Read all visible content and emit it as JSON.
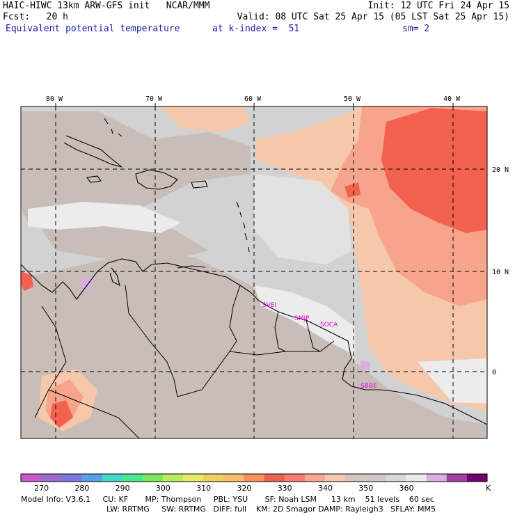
{
  "header": {
    "line1_left": "HAIC-HIWC 13km ARW-GFS init   NCAR/MMM",
    "line1_right": "Init: 12 UTC Fri 24 Apr 15",
    "line2_left": "Fcst:   20 h",
    "line2_right": "Valid: 08 UTC Sat 25 Apr 15 (05 LST Sat 25 Apr 15)",
    "line3_left": "Equivalent potential temperature",
    "line3_mid": "at k-index =  51",
    "line3_right": "sm= 2"
  },
  "map": {
    "lon_labels": [
      "80 W",
      "70 W",
      "60 W",
      "50 W",
      "40 W"
    ],
    "lat_labels": [
      "20 N",
      "10 N",
      "0"
    ],
    "city_labels": [
      "SVEI",
      "SMJP",
      "SOCA",
      "SBBE"
    ]
  },
  "colorbar": {
    "unit": "K",
    "labels": [
      "270",
      "280",
      "290",
      "300",
      "310",
      "320",
      "330",
      "340",
      "350",
      "360"
    ],
    "colors": [
      "#c85ac8",
      "#9b6bd0",
      "#7a78e0",
      "#5aa0e8",
      "#45d8c8",
      "#47e890",
      "#7ce860",
      "#b8ec60",
      "#e8ec60",
      "#f0d060",
      "#f8bc6c",
      "#f89060",
      "#f06050",
      "#f87c70",
      "#f8a890",
      "#f4c8b0",
      "#d8c4b8",
      "#d0c8c8",
      "#d8d8d8",
      "#ececec",
      "#d8b0e0",
      "#a040a0",
      "#700070"
    ]
  },
  "model_info": {
    "line1": "Model Info: V3.6.1     CU: KF       MP: Thompson     PBL: YSU       SF: Noah LSM      13 km    51 levels    60 sec",
    "line2": "LW: RRTMG     SW: RRTMG   DIFF: full    KM: 2D Smagor DAMP: Rayleigh3   SFLAY: MM5"
  },
  "field_colors": {
    "gray_light": "#d2d2d2",
    "gray_tan": "#c9bdb7",
    "peach": "#f5c8ac",
    "salmon": "#f6a58c",
    "red": "#f3614f",
    "white_patch": "#ececec"
  }
}
